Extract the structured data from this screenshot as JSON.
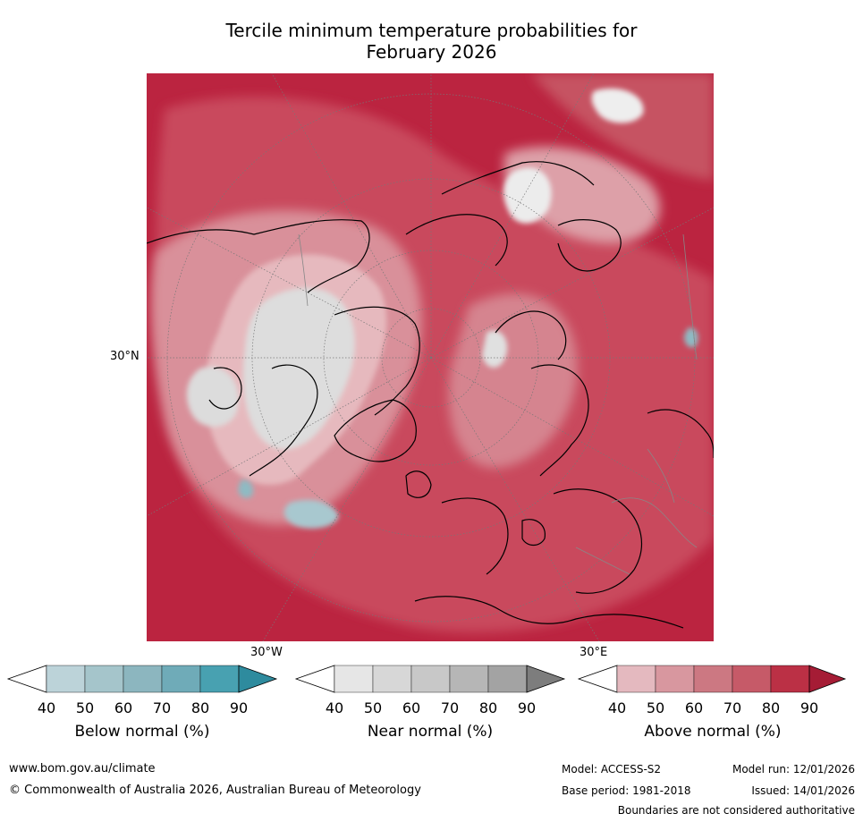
{
  "title_line1": "Tercile minimum temperature probabilities for",
  "title_line2": "February 2026",
  "map": {
    "lat_label": "30°N",
    "lon_labels": [
      "30°W",
      "30°E"
    ]
  },
  "colorbars": [
    {
      "label": "Below normal (%)",
      "ticks": [
        "40",
        "50",
        "60",
        "70",
        "80",
        "90"
      ],
      "colors": [
        "#bcd3d9",
        "#a5c5cb",
        "#8cb6bf",
        "#6fabb8",
        "#48a1b1",
        "#2e8b9e"
      ]
    },
    {
      "label": "Near normal (%)",
      "ticks": [
        "40",
        "50",
        "60",
        "70",
        "80",
        "90"
      ],
      "colors": [
        "#e6e6e6",
        "#d7d7d7",
        "#c8c8c8",
        "#b6b6b6",
        "#a3a3a3",
        "#7d7d7d"
      ]
    },
    {
      "label": "Above normal (%)",
      "ticks": [
        "40",
        "50",
        "60",
        "70",
        "80",
        "90"
      ],
      "colors": [
        "#e4b9bf",
        "#d8979f",
        "#cc7882",
        "#c65a68",
        "#bb3045",
        "#a51c35"
      ]
    }
  ],
  "footer": {
    "website": "www.bom.gov.au/climate",
    "copyright": "© Commonwealth of Australia 2026, Australian Bureau of Meteorology",
    "model": "Model: ACCESS-S2",
    "base_period": "Base period: 1981-2018",
    "model_run": "Model run: 12/01/2026",
    "issued": "Issued: 14/01/2026",
    "disclaimer": "Boundaries are not considered authoritative"
  },
  "colors": {
    "above_deep": "#b91d3b",
    "above_mid": "#c8485c",
    "above_light": "#d88a94",
    "above_pale": "#e6b8bd",
    "near": "#dcdcdc",
    "below": "#a5c7cf"
  }
}
